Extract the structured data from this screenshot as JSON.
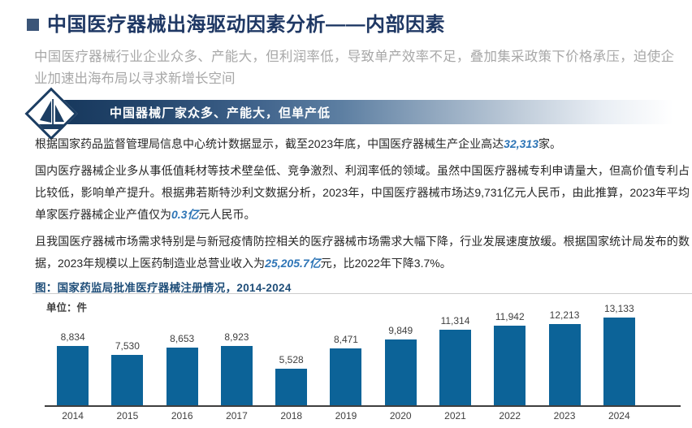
{
  "page": {
    "title": "中国医疗器械出海驱动因素分析——内部因素",
    "subtitle": "中国医疗器械行业企业众多、产能大，但利润率低，导致单产效率不足，叠加集采政策下价格承压，迫使企业加速出海布局以寻求新增长空间"
  },
  "banner": {
    "label": "中国器械厂家众多、产能大，但单产低",
    "icon": "sailboat-diamond-icon"
  },
  "body": {
    "paragraphs": [
      [
        {
          "text": "根据国家药品监督管理局信息中心统计数据显示，截至2023年底，中国医疗器械生产企业高达",
          "highlight": false
        },
        {
          "text": "32,313",
          "highlight": true
        },
        {
          "text": "家。",
          "highlight": false
        }
      ],
      [
        {
          "text": "国内医疗器械企业多从事低值耗材等技术壁垒低、竞争激烈、利润率低的领域。虽然中国医疗器械专利申请量大，但高价值专利占比较低，影响单产提升。根据弗若斯特沙利文数据分析，2023年，中国医疗器械市场达9,731亿元人民币，由此推算，2023年平均单家医疗器械企业产值仅为",
          "highlight": false
        },
        {
          "text": "0.3亿",
          "highlight": true
        },
        {
          "text": "元人民币。",
          "highlight": false
        }
      ],
      [
        {
          "text": "且我国医疗器械市场需求特别是与新冠疫情防控相关的医疗器械市场需求大幅下降，行业发展速度放缓。根据国家统计局发布的数据，2023年规模以上医药制造业总营业收入为",
          "highlight": false
        },
        {
          "text": "25,205.7亿",
          "highlight": true
        },
        {
          "text": "元，比2022年下降3.7%。",
          "highlight": false
        }
      ]
    ]
  },
  "chart": {
    "title": "图：国家药监局批准医疗器械注册情况，2014-2024",
    "unit_label": "单位：件"
  },
  "chart_data": {
    "type": "bar",
    "title": "国家药监局批准医疗器械注册情况，2014-2024",
    "unit": "件",
    "categories": [
      "2014",
      "2015",
      "2016",
      "2017",
      "2018",
      "2019",
      "2020",
      "2021",
      "2022",
      "2023",
      "2024"
    ],
    "values": [
      8834,
      7530,
      8653,
      8923,
      5528,
      8471,
      9849,
      11314,
      11942,
      12213,
      13133
    ],
    "value_labels": [
      "8,834",
      "7,530",
      "8,653",
      "8,923",
      "5,528",
      "8,471",
      "9,849",
      "11,314",
      "11,942",
      "12,213",
      "13,133"
    ],
    "bar_color": "#0c6398",
    "ylim": [
      0,
      13133
    ],
    "grid": false,
    "legend": "none",
    "xlabel": "",
    "ylabel": "件"
  },
  "colors": {
    "title_navy": "#1f3864",
    "subtitle_gray": "#a8a8a8",
    "highlight_blue": "#2e75b6",
    "chart_title_blue": "#1f4e79",
    "banner_navy": "#16375c",
    "bar_blue": "#0c6398"
  }
}
